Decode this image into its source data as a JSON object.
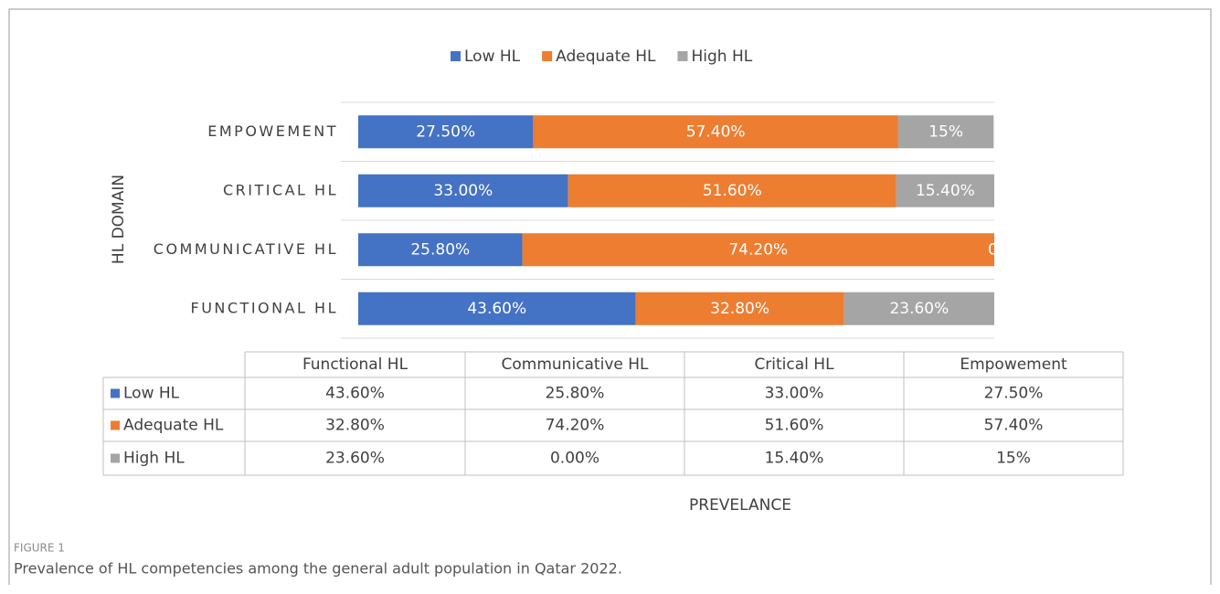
{
  "chart_data": {
    "type": "stacked-bar-horizontal",
    "categories": [
      "Functional HL",
      "Communicative HL",
      "Critical HL",
      "Empowement"
    ],
    "series": [
      {
        "name": "Low HL",
        "color": "#4472c4",
        "values": [
          43.6,
          25.8,
          33.0,
          27.5
        ],
        "value_labels": [
          "43.60%",
          "25.80%",
          "33.00%",
          "27.50%"
        ]
      },
      {
        "name": "Adequate HL",
        "color": "#ed7d31",
        "values": [
          32.8,
          74.2,
          51.6,
          57.4
        ],
        "value_labels": [
          "32.80%",
          "74.20%",
          "51.60%",
          "57.40%"
        ]
      },
      {
        "name": "High HL",
        "color": "#a5a5a5",
        "values": [
          23.6,
          0.0,
          15.4,
          15
        ],
        "value_labels": [
          "23.60%",
          "0.00%",
          "15.40%",
          "15%"
        ]
      }
    ],
    "xlim": [
      0,
      100
    ],
    "y_axis_label": "HL DOMAIN",
    "x_axis_label": "PREVELANCE",
    "legend": "top",
    "figure_label": "FIGURE 1",
    "caption": "Prevalence of HL competencies among the general adult population in Qatar 2022."
  }
}
